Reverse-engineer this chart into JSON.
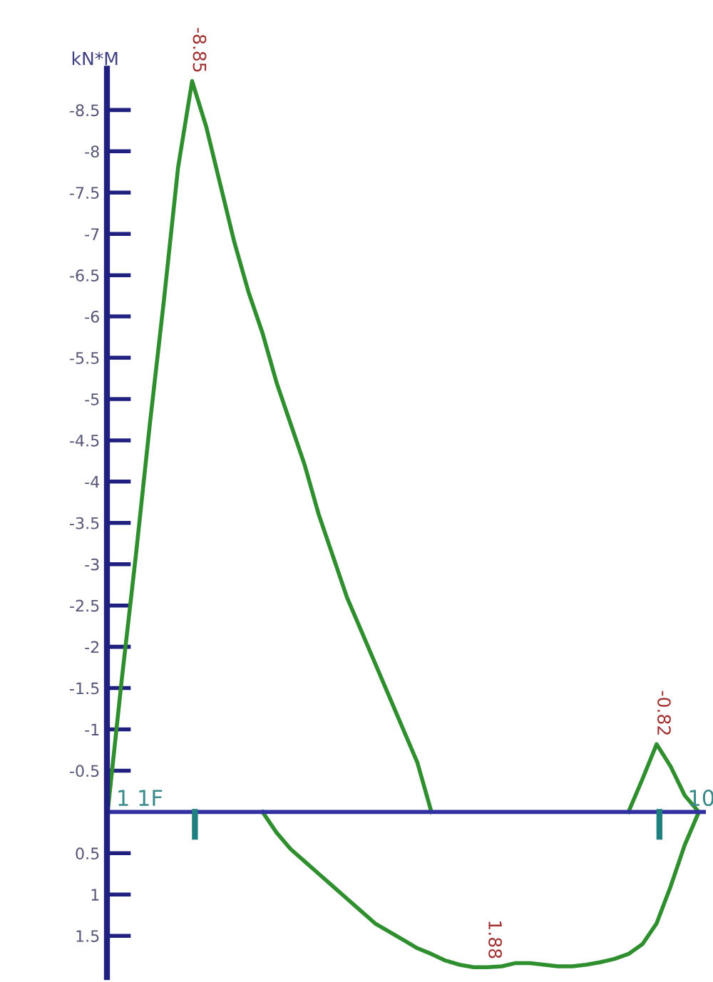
{
  "chart_data": {
    "type": "line",
    "ylabel": "kN*M",
    "categories": [
      null,
      null,
      null,
      null,
      null,
      null,
      null,
      null,
      null,
      null,
      null,
      null,
      null,
      null,
      null,
      null,
      null,
      null,
      null,
      null,
      null,
      null,
      null,
      null,
      null,
      null,
      null,
      null,
      null,
      null,
      null,
      null,
      null,
      null,
      null,
      null,
      null,
      null,
      null,
      null,
      null,
      null,
      null
    ],
    "series": [
      {
        "color": "#2f8f2f",
        "values": [
          0,
          -1.6,
          -3.1,
          -4.7,
          -6.2,
          -7.8,
          -8.85,
          -8.3,
          -7.6,
          -6.9,
          -6.3,
          -5.8,
          -5.2,
          -4.7,
          -4.2,
          -3.6,
          -3.1,
          -2.6,
          -2.2,
          -1.8,
          -1.4,
          -1.0,
          -0.6,
          0,
          null,
          null,
          null,
          null,
          null,
          null,
          null,
          null,
          null,
          null,
          null,
          null,
          null,
          null,
          null,
          null,
          null,
          null,
          null
        ],
        "value_labels": [
          null,
          null,
          null,
          null,
          null,
          null,
          "-8.85",
          null,
          null,
          null,
          null,
          null,
          null,
          null,
          null,
          null,
          null,
          null,
          null,
          null,
          null,
          null,
          null,
          null,
          null,
          null,
          null,
          null,
          null,
          null,
          null,
          null,
          null,
          null,
          null,
          null,
          null,
          null,
          null,
          null,
          null,
          null,
          null
        ]
      },
      {
        "color": "#2f8f2f",
        "values": [
          null,
          null,
          null,
          null,
          null,
          null,
          null,
          null,
          null,
          null,
          null,
          0,
          0.25,
          0.45,
          0.6,
          0.75,
          0.9,
          1.05,
          1.2,
          1.35,
          1.45,
          1.55,
          1.65,
          1.72,
          1.8,
          1.85,
          1.88,
          1.88,
          1.87,
          1.83,
          1.83,
          1.85,
          1.87,
          1.87,
          1.85,
          1.82,
          1.78,
          1.72,
          1.6,
          1.35,
          0.9,
          0.4,
          0
        ],
        "value_labels": [
          null,
          null,
          null,
          null,
          null,
          null,
          null,
          null,
          null,
          null,
          null,
          null,
          null,
          null,
          null,
          null,
          null,
          null,
          null,
          null,
          null,
          null,
          null,
          null,
          null,
          null,
          null,
          "1.88",
          null,
          null,
          null,
          null,
          null,
          null,
          null,
          null,
          null,
          null,
          null,
          null,
          null,
          null,
          null
        ]
      },
      {
        "color": "#2f8f2f",
        "values": [
          null,
          null,
          null,
          null,
          null,
          null,
          null,
          null,
          null,
          null,
          null,
          null,
          null,
          null,
          null,
          null,
          null,
          null,
          null,
          null,
          null,
          null,
          null,
          null,
          null,
          null,
          null,
          null,
          null,
          null,
          null,
          null,
          null,
          null,
          null,
          null,
          null,
          0,
          -0.4,
          -0.82,
          -0.55,
          -0.2,
          0
        ],
        "value_labels": [
          null,
          null,
          null,
          null,
          null,
          null,
          null,
          null,
          null,
          null,
          null,
          null,
          null,
          null,
          null,
          null,
          null,
          null,
          null,
          null,
          null,
          null,
          null,
          null,
          null,
          null,
          null,
          null,
          null,
          null,
          null,
          null,
          null,
          null,
          null,
          null,
          null,
          null,
          null,
          "-0.82",
          null,
          null,
          null
        ]
      }
    ],
    "ylim": [
      2.0,
      -9.0
    ],
    "yticks": [
      -8.5,
      -8,
      -7.5,
      -7,
      -6.5,
      -6,
      -5.5,
      -5,
      -4.5,
      -4,
      -3.5,
      -3,
      -2.5,
      -2,
      -1.5,
      -1,
      -0.5,
      0.5,
      1,
      1.5
    ],
    "annotations": [
      "1 1F",
      "10"
    ],
    "ref_lines": [
      {
        "axis": "y",
        "value": 0,
        "color": "#3030a0"
      }
    ],
    "tick_labels": "y",
    "grid": false,
    "legend": false,
    "marker": "none",
    "line_style": "solid"
  }
}
